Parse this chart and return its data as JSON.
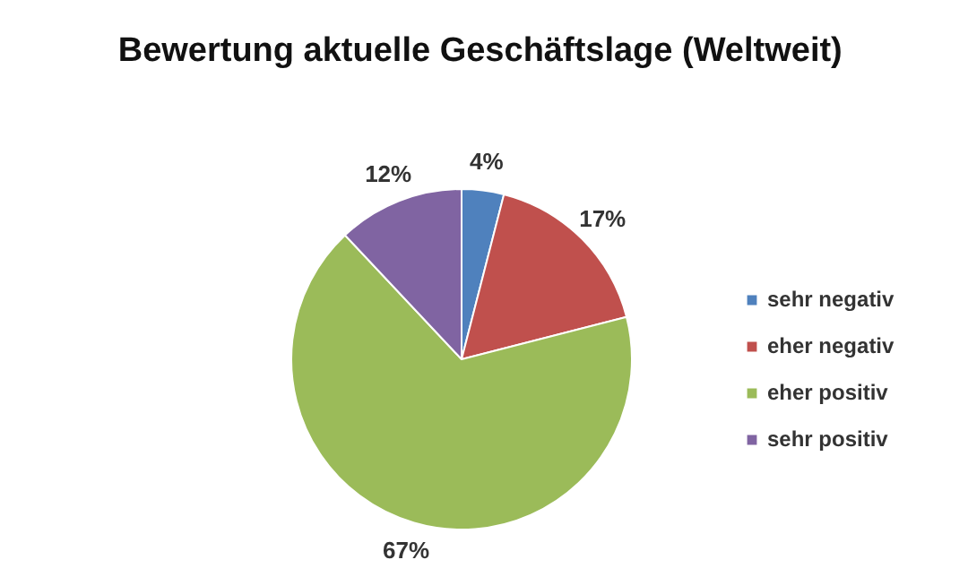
{
  "chart_data": {
    "type": "pie",
    "title": "Bewertung aktuelle Geschäftslage  (Weltweit)",
    "categories": [
      "sehr negativ",
      "eher negativ",
      "eher positiv",
      "sehr positiv"
    ],
    "values": [
      4,
      17,
      67,
      12
    ],
    "colors": [
      "#4f81bd",
      "#c0504d",
      "#9bbb59",
      "#8064a2"
    ],
    "value_labels": [
      "4%",
      "17%",
      "67%",
      "12%"
    ],
    "legend": "right"
  }
}
